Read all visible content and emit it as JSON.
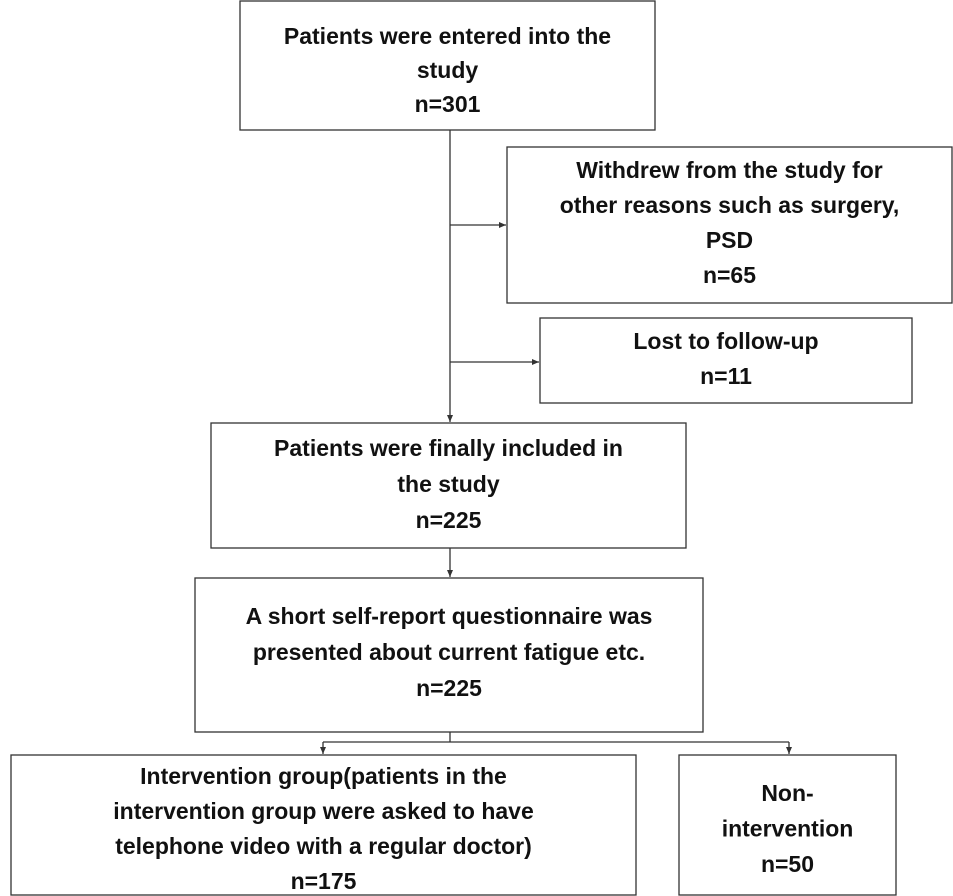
{
  "nodes": [
    {
      "lines": [
        "Patients were entered into the",
        "study",
        "n=301"
      ]
    },
    {
      "lines": [
        "Withdrew from the study for",
        "other reasons such as surgery,",
        "PSD",
        "n=65"
      ]
    },
    {
      "lines": [
        "Lost to follow-up",
        "n=11"
      ]
    },
    {
      "lines": [
        "Patients were finally included in",
        "the study",
        "n=225"
      ]
    },
    {
      "lines": [
        "A short self-report questionnaire was",
        "presented about current fatigue etc.",
        "n=225"
      ]
    },
    {
      "lines": [
        "Intervention group(patients in the",
        "intervention group were asked to have",
        "telephone video with a regular doctor)",
        "n=175"
      ]
    },
    {
      "lines": [
        "Non-",
        "intervention",
        "n=50"
      ]
    }
  ]
}
